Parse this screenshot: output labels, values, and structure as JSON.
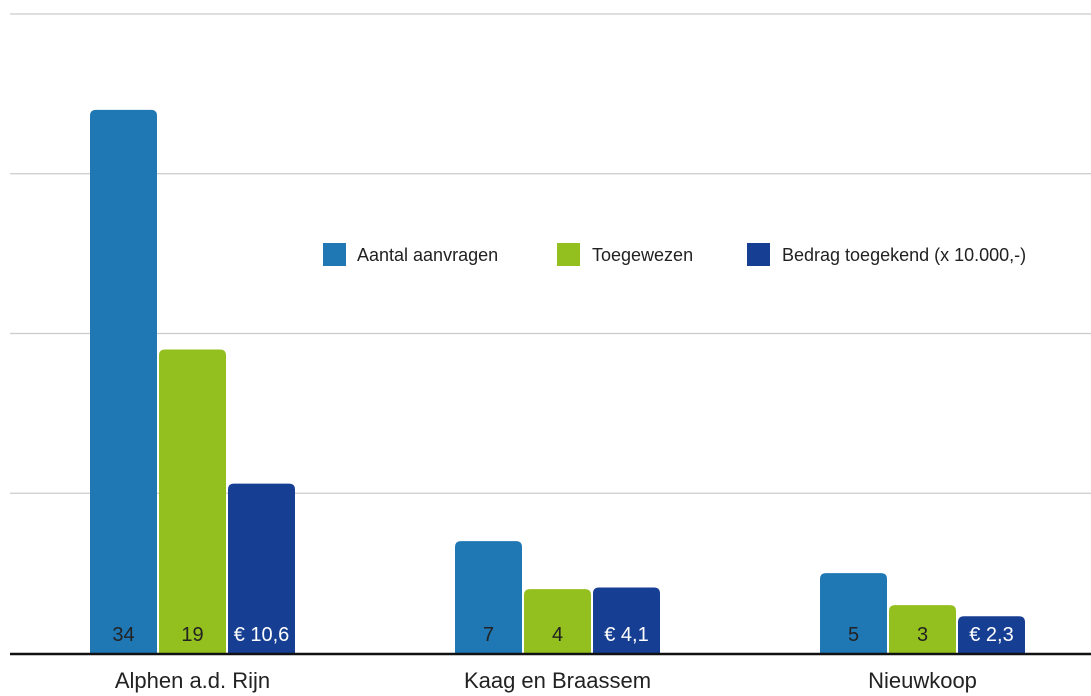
{
  "colors": {
    "aanvragen": "#1f78b4",
    "toegewezen": "#93c01f",
    "bedrag": "#163e92",
    "grid": "#cccccc",
    "axis": "#111111"
  },
  "chart_data": {
    "type": "bar",
    "categories": [
      "Alphen a.d. Rijn",
      "Kaag en Braassem",
      "Nieuwkoop"
    ],
    "series": [
      {
        "name": "Aantal aanvragen",
        "values": [
          34,
          7,
          5
        ],
        "labels": [
          "34",
          "7",
          "5"
        ]
      },
      {
        "name": "Toegewezen",
        "values": [
          19,
          4,
          3
        ],
        "labels": [
          "19",
          "4",
          "3"
        ]
      },
      {
        "name": "Bedrag toegekend (x 10.000,-)",
        "values": [
          10.6,
          4.1,
          2.3
        ],
        "labels": [
          "€ 10,6",
          "€ 4,1",
          "€ 2,3"
        ]
      }
    ],
    "ylim": [
      0,
      40
    ],
    "grid": true,
    "legend": "center-right"
  }
}
